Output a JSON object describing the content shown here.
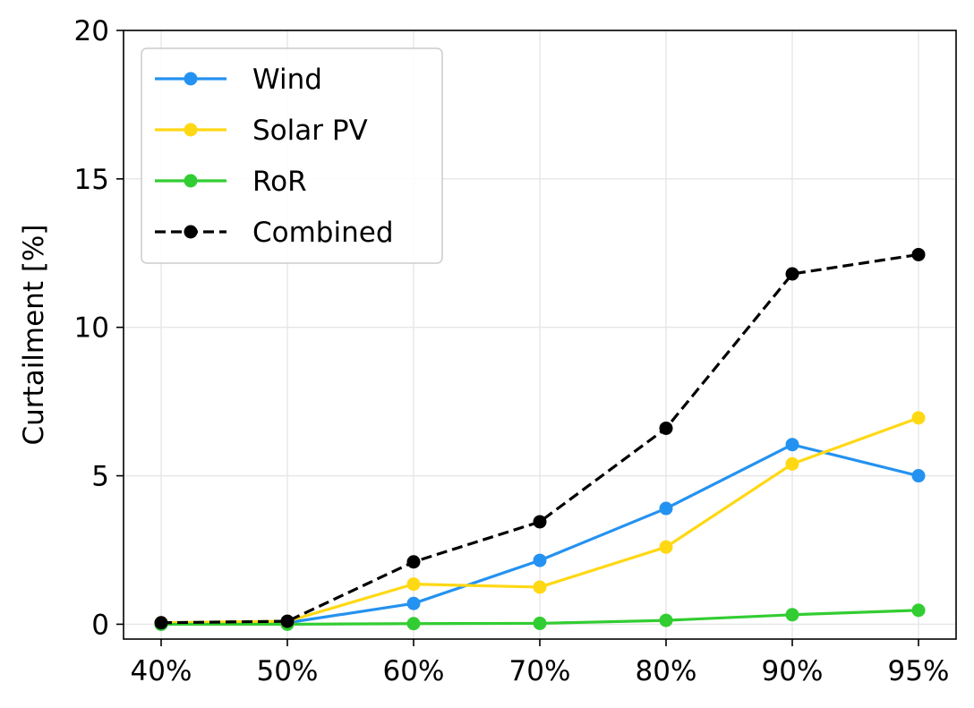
{
  "chart_data": {
    "type": "line",
    "title": "",
    "xlabel": "",
    "ylabel": "Curtailment [%]",
    "categories": [
      "40%",
      "50%",
      "60%",
      "70%",
      "80%",
      "90%",
      "95%"
    ],
    "ylim": [
      -0.5,
      20
    ],
    "yticks": [
      0,
      5,
      10,
      15,
      20
    ],
    "grid": true,
    "legend_position": "upper-left",
    "series": [
      {
        "name": "Wind",
        "color": "#2492f0",
        "dashed": false,
        "values": [
          0.0,
          0.05,
          0.7,
          2.15,
          3.9,
          6.05,
          5.0
        ]
      },
      {
        "name": "Solar PV",
        "color": "#ffd814",
        "dashed": false,
        "values": [
          0.05,
          0.1,
          1.35,
          1.25,
          2.6,
          5.4,
          6.95
        ]
      },
      {
        "name": "RoR",
        "color": "#32cd32",
        "dashed": false,
        "values": [
          0.0,
          0.0,
          0.02,
          0.03,
          0.13,
          0.32,
          0.47
        ]
      },
      {
        "name": "Combined",
        "color": "#000000",
        "dashed": true,
        "values": [
          0.05,
          0.1,
          2.1,
          3.45,
          6.6,
          11.8,
          12.45
        ]
      }
    ]
  }
}
